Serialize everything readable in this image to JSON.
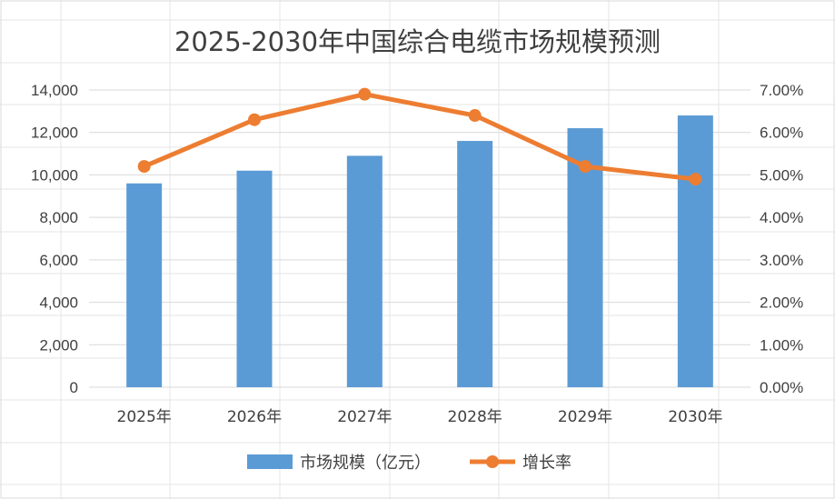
{
  "chart_data": {
    "type": "bar",
    "title": "2025-2030年中国综合电缆市场规模预测",
    "categories": [
      "2025年",
      "2026年",
      "2027年",
      "2028年",
      "2029年",
      "2030年"
    ],
    "series": [
      {
        "name": "市场规模（亿元）",
        "type": "bar",
        "axis": "left",
        "color": "#5B9BD5",
        "values": [
          9600,
          10200,
          10900,
          11600,
          12200,
          12800
        ]
      },
      {
        "name": "增长率",
        "type": "line",
        "axis": "right",
        "color": "#ED7D31",
        "values": [
          0.052,
          0.063,
          0.069,
          0.064,
          0.052,
          0.049
        ]
      }
    ],
    "y_left": {
      "min": 0,
      "max": 14000,
      "step": 2000,
      "tick_labels": [
        "0",
        "2,000",
        "4,000",
        "6,000",
        "8,000",
        "10,000",
        "12,000",
        "14,000"
      ]
    },
    "y_right": {
      "min": 0,
      "max": 0.07,
      "step": 0.01,
      "tick_labels": [
        "0.00%",
        "1.00%",
        "2.00%",
        "3.00%",
        "4.00%",
        "5.00%",
        "6.00%",
        "7.00%"
      ]
    },
    "grid": true,
    "legend_position": "bottom"
  }
}
